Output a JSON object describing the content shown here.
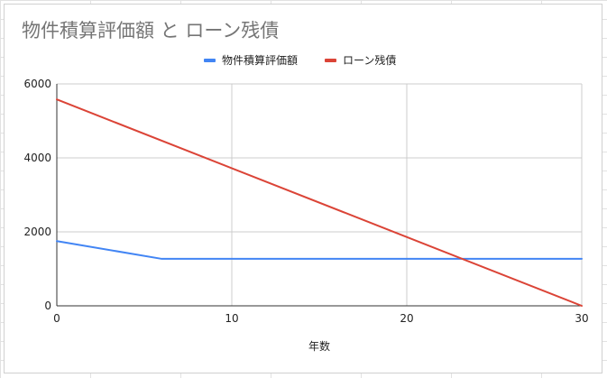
{
  "chart_data": {
    "type": "line",
    "title": "物件積算評価額 と ローン残債",
    "xlabel": "年数",
    "ylabel": "",
    "xlim": [
      0,
      30
    ],
    "ylim": [
      0,
      6000
    ],
    "xticks": [
      0,
      10,
      20,
      30
    ],
    "yticks": [
      0,
      2000,
      4000,
      6000
    ],
    "grid": true,
    "legend_position": "top",
    "series": [
      {
        "name": "物件積算評価額",
        "color": "#4285f4",
        "x": [
          0,
          6,
          30
        ],
        "y": [
          1750,
          1270,
          1270
        ]
      },
      {
        "name": "ローン残債",
        "color": "#db4437",
        "x": [
          0,
          30
        ],
        "y": [
          5580,
          0
        ]
      }
    ]
  }
}
